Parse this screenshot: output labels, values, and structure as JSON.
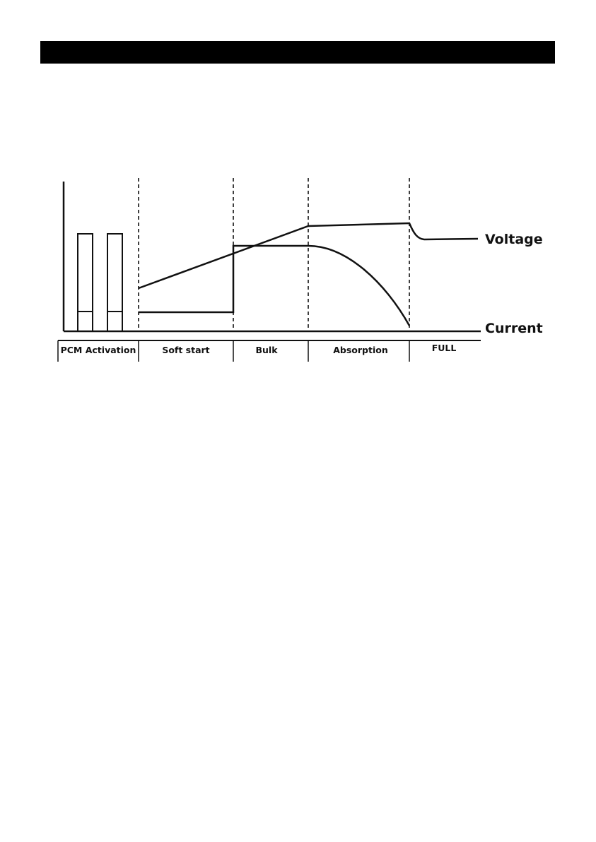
{
  "header": {
    "bar_color": "#000000"
  },
  "diagram": {
    "stages": [
      "PCM Activation",
      "Soft start",
      "Bulk",
      "Absorption",
      "FULL"
    ],
    "curves": {
      "voltage": "Voltage",
      "current": "Current"
    },
    "line_color": "#111111"
  }
}
